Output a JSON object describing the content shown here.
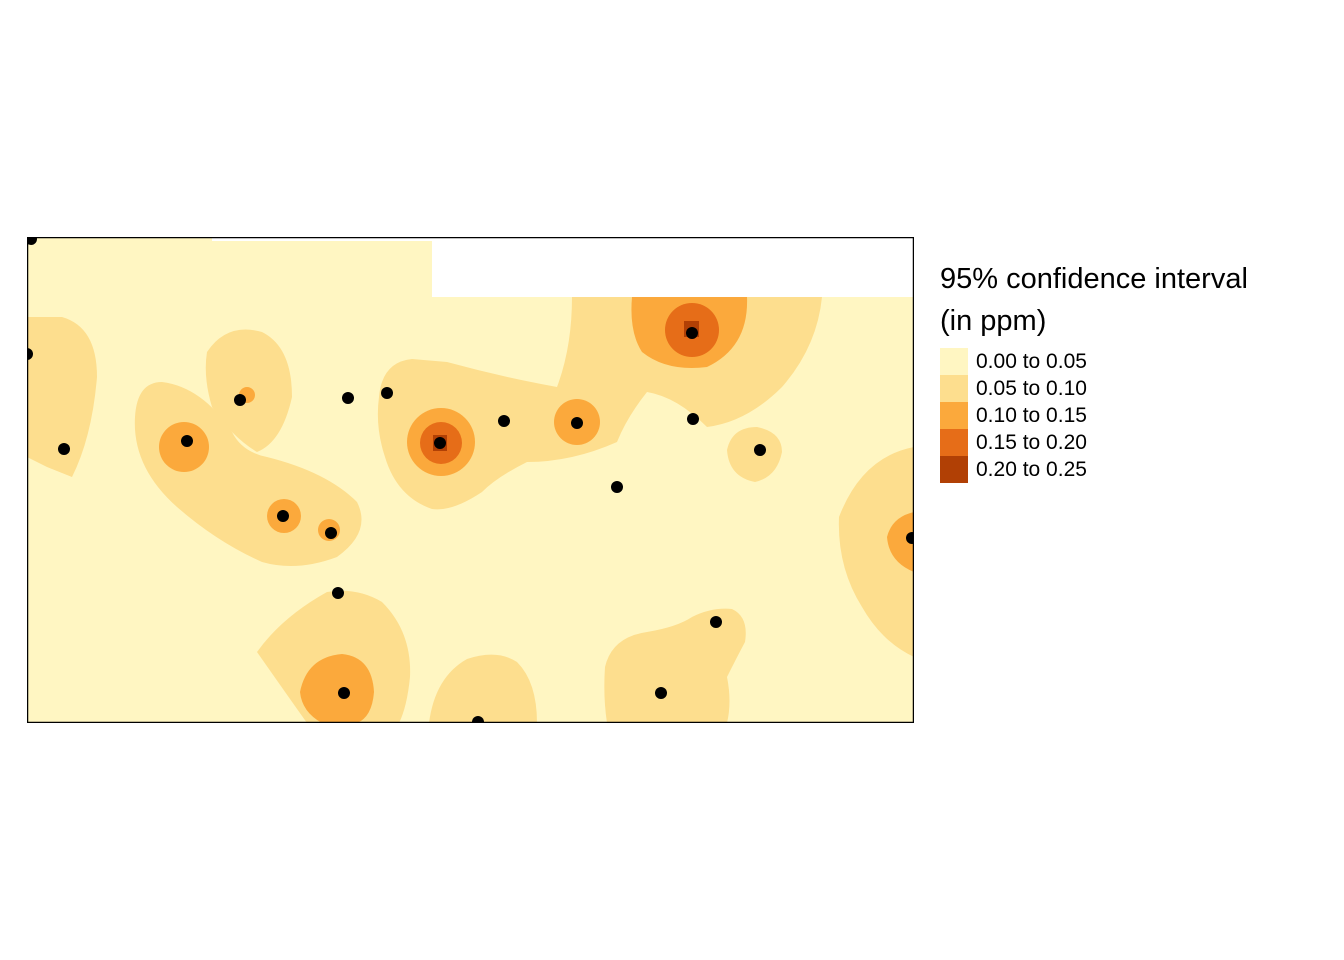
{
  "legend": {
    "title_line1": "95% confidence interval",
    "title_line2": "(in ppm)",
    "classes": [
      {
        "label": "0.00 to 0.05",
        "color": "#fff6c2"
      },
      {
        "label": "0.05 to 0.10",
        "color": "#fdde8e"
      },
      {
        "label": "0.10 to 0.15",
        "color": "#fba93c"
      },
      {
        "label": "0.15 to 0.20",
        "color": "#e66d18"
      },
      {
        "label": "0.20 to 0.25",
        "color": "#b14005"
      }
    ]
  },
  "map": {
    "background_color": "#ffffff",
    "point_color": "#000000",
    "frame_color": "#000000"
  }
}
